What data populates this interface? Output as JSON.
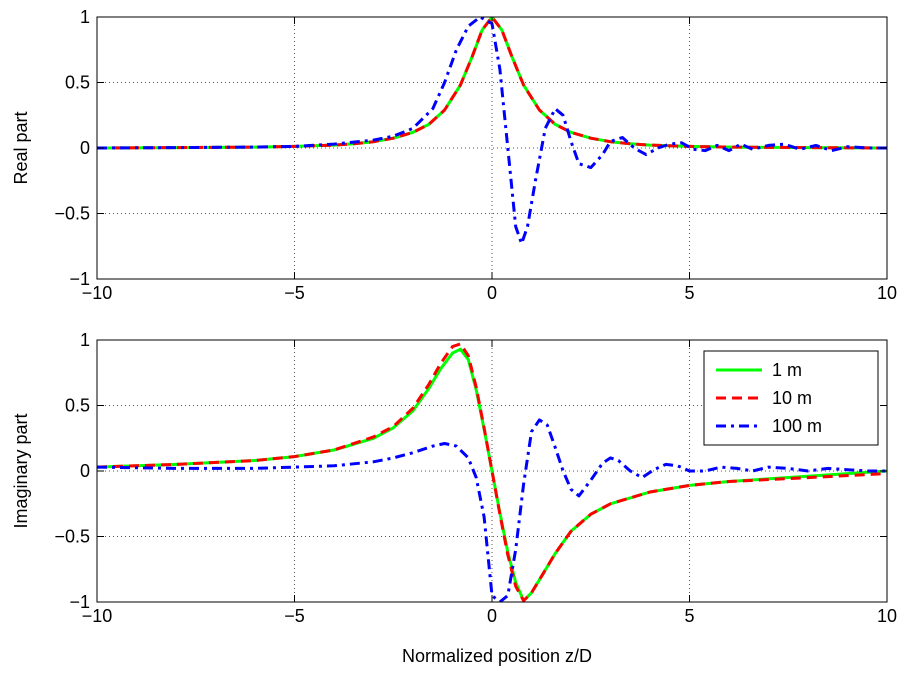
{
  "figure": {
    "xlabel": "Normalized position z/D"
  },
  "chart_data": [
    {
      "type": "line",
      "panel": "top",
      "title": "",
      "xlabel": "",
      "ylabel": "Real part",
      "xlim": [
        -10,
        10
      ],
      "ylim": [
        -1,
        1
      ],
      "xticks": [
        -10,
        -5,
        0,
        5,
        10
      ],
      "xtick_labels": [
        "−10",
        "−5",
        "0",
        "5",
        "10"
      ],
      "yticks": [
        -1,
        -0.5,
        0,
        0.5,
        1
      ],
      "ytick_labels": [
        "−1",
        "−0.5",
        "0",
        "0.5",
        "1"
      ],
      "grid": true,
      "series": [
        {
          "name": "1 m",
          "color": "#00ff00",
          "style": "solid",
          "x": [
            -10,
            -8,
            -6,
            -5,
            -4,
            -3.5,
            -3,
            -2.5,
            -2,
            -1.6,
            -1.2,
            -0.8,
            -0.5,
            -0.25,
            0,
            0.25,
            0.5,
            0.8,
            1.2,
            1.6,
            2,
            2.5,
            3,
            3.5,
            4,
            5,
            6,
            8,
            10
          ],
          "y": [
            0.0,
            0.003,
            0.007,
            0.012,
            0.022,
            0.032,
            0.048,
            0.075,
            0.12,
            0.18,
            0.29,
            0.48,
            0.7,
            0.9,
            1.0,
            0.9,
            0.7,
            0.48,
            0.29,
            0.18,
            0.12,
            0.075,
            0.048,
            0.032,
            0.022,
            0.012,
            0.007,
            0.003,
            0.0
          ]
        },
        {
          "name": "10 m",
          "color": "#ff0000",
          "style": "dashed",
          "x": [
            -10,
            -8,
            -6,
            -5,
            -4,
            -3.5,
            -3,
            -2.5,
            -2,
            -1.6,
            -1.2,
            -0.8,
            -0.5,
            -0.25,
            0,
            0.25,
            0.5,
            0.8,
            1.2,
            1.6,
            2,
            2.5,
            3,
            3.5,
            4,
            5,
            6,
            8,
            10
          ],
          "y": [
            0.0,
            0.003,
            0.007,
            0.012,
            0.022,
            0.032,
            0.048,
            0.075,
            0.12,
            0.18,
            0.29,
            0.48,
            0.7,
            0.9,
            1.0,
            0.9,
            0.7,
            0.48,
            0.29,
            0.18,
            0.12,
            0.075,
            0.048,
            0.032,
            0.022,
            0.012,
            0.007,
            0.003,
            0.0
          ]
        },
        {
          "name": "100 m",
          "color": "#0000ff",
          "style": "dashdot",
          "x": [
            -10,
            -8,
            -6,
            -5,
            -4,
            -3,
            -2.5,
            -2,
            -1.5,
            -1.2,
            -0.9,
            -0.6,
            -0.3,
            0,
            0.2,
            0.4,
            0.6,
            0.75,
            0.9,
            1.1,
            1.35,
            1.6,
            1.8,
            2.0,
            2.2,
            2.5,
            2.8,
            3.0,
            3.3,
            3.6,
            3.9,
            4.2,
            4.5,
            4.8,
            5.1,
            5.4,
            5.7,
            6.0,
            6.3,
            6.6,
            7.0,
            7.4,
            7.8,
            8.2,
            8.6,
            9.0,
            9.5,
            10
          ],
          "y": [
            0.0,
            0.003,
            0.007,
            0.012,
            0.03,
            0.06,
            0.09,
            0.15,
            0.3,
            0.5,
            0.75,
            0.93,
            1.0,
            0.95,
            0.6,
            0.0,
            -0.6,
            -0.73,
            -0.6,
            -0.25,
            0.15,
            0.3,
            0.25,
            0.05,
            -0.12,
            -0.15,
            -0.05,
            0.05,
            0.08,
            0.0,
            -0.05,
            0.0,
            0.03,
            0.04,
            -0.01,
            -0.02,
            0.02,
            -0.02,
            0.03,
            -0.01,
            0.02,
            0.03,
            -0.01,
            0.02,
            -0.02,
            0.01,
            0.0,
            0.0
          ]
        }
      ]
    },
    {
      "type": "line",
      "panel": "bottom",
      "title": "",
      "xlabel": "",
      "ylabel": "Imaginary part",
      "xlim": [
        -10,
        10
      ],
      "ylim": [
        -1,
        1
      ],
      "xticks": [
        -10,
        -5,
        0,
        5,
        10
      ],
      "xtick_labels": [
        "−10",
        "−5",
        "0",
        "5",
        "10"
      ],
      "yticks": [
        -1,
        -0.5,
        0,
        0.5,
        1
      ],
      "ytick_labels": [
        "−1",
        "−0.5",
        "0",
        "0.5",
        "1"
      ],
      "grid": true,
      "legend": {
        "position": "top-right",
        "entries": [
          "1 m",
          "10 m",
          "100 m"
        ]
      },
      "series": [
        {
          "name": "1 m",
          "color": "#00ff00",
          "style": "solid",
          "x": [
            -10,
            -8,
            -6,
            -5,
            -4,
            -3,
            -2.5,
            -2,
            -1.6,
            -1.3,
            -1.0,
            -0.8,
            -0.6,
            -0.4,
            -0.2,
            0,
            0.2,
            0.4,
            0.6,
            0.8,
            1.0,
            1.3,
            1.6,
            2.0,
            2.5,
            3,
            4,
            5,
            6,
            8,
            10
          ],
          "y": [
            0.03,
            0.05,
            0.08,
            0.11,
            0.16,
            0.25,
            0.33,
            0.46,
            0.63,
            0.78,
            0.9,
            0.93,
            0.85,
            0.62,
            0.32,
            0.0,
            -0.32,
            -0.62,
            -0.85,
            -0.99,
            -0.93,
            -0.78,
            -0.63,
            -0.46,
            -0.33,
            -0.25,
            -0.16,
            -0.11,
            -0.08,
            -0.04,
            0.0
          ]
        },
        {
          "name": "10 m",
          "color": "#ff0000",
          "style": "dashed",
          "x": [
            -10,
            -8,
            -6,
            -5,
            -4,
            -3,
            -2.5,
            -2,
            -1.6,
            -1.3,
            -1.0,
            -0.8,
            -0.6,
            -0.4,
            -0.2,
            0,
            0.2,
            0.4,
            0.6,
            0.8,
            1.0,
            1.3,
            1.6,
            2.0,
            2.5,
            3,
            4,
            5,
            6,
            8,
            10
          ],
          "y": [
            0.03,
            0.05,
            0.08,
            0.11,
            0.16,
            0.26,
            0.34,
            0.48,
            0.66,
            0.82,
            0.95,
            0.97,
            0.88,
            0.64,
            0.33,
            0.0,
            -0.33,
            -0.64,
            -0.88,
            -0.99,
            -0.93,
            -0.78,
            -0.63,
            -0.46,
            -0.33,
            -0.25,
            -0.16,
            -0.11,
            -0.08,
            -0.05,
            -0.02
          ]
        },
        {
          "name": "100 m",
          "color": "#0000ff",
          "style": "dashdot",
          "x": [
            -10,
            -8,
            -6,
            -5,
            -4,
            -3,
            -2.5,
            -2,
            -1.5,
            -1.2,
            -0.9,
            -0.6,
            -0.4,
            -0.2,
            0,
            0.2,
            0.4,
            0.6,
            0.8,
            1.0,
            1.2,
            1.4,
            1.6,
            1.8,
            2.0,
            2.2,
            2.5,
            2.8,
            3.0,
            3.2,
            3.5,
            3.8,
            4.1,
            4.4,
            4.7,
            5.0,
            5.4,
            5.8,
            6.2,
            6.6,
            7.0,
            7.5,
            8.0,
            8.5,
            9.0,
            9.5,
            10
          ],
          "y": [
            0.03,
            0.02,
            0.02,
            0.03,
            0.04,
            0.07,
            0.1,
            0.14,
            0.19,
            0.21,
            0.19,
            0.1,
            -0.05,
            -0.35,
            -0.95,
            -1.0,
            -0.95,
            -0.6,
            -0.1,
            0.3,
            0.39,
            0.35,
            0.18,
            0.0,
            -0.14,
            -0.19,
            -0.07,
            0.06,
            0.1,
            0.08,
            0.0,
            -0.05,
            0.01,
            0.05,
            0.04,
            0.0,
            0.0,
            0.03,
            0.02,
            0.0,
            0.03,
            0.02,
            0.0,
            0.02,
            0.01,
            0.0,
            0.0
          ]
        }
      ]
    }
  ]
}
